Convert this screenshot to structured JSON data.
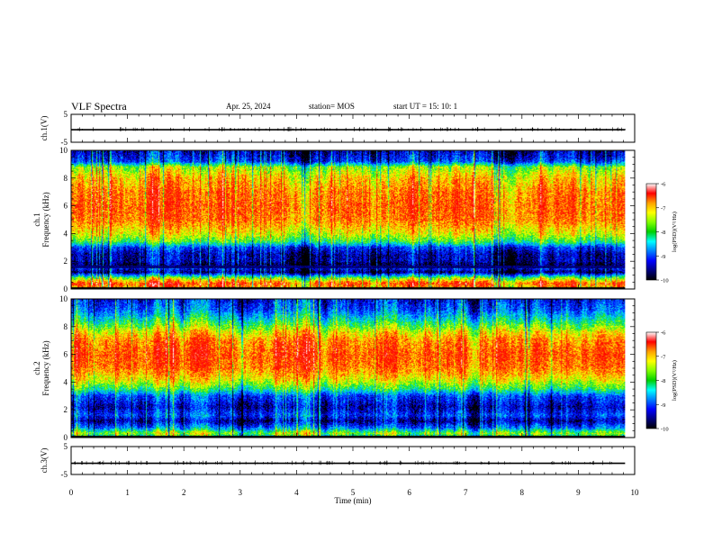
{
  "header": {
    "title": "VLF Spectra",
    "date": "Apr. 25, 2024",
    "station": "station= MOS",
    "start": "start  UT =   15: 10: 1"
  },
  "colorbar": {
    "label": "log(PSD)(V²/Hz)",
    "ticks": [
      "-6",
      "-7",
      "-8",
      "-9",
      "-10"
    ],
    "colors": [
      "#ffffff",
      "#ff0000",
      "#ffa000",
      "#ffff00",
      "#80ff00",
      "#00d000",
      "#00ffff",
      "#0080ff",
      "#0000ff",
      "#000080",
      "#000000"
    ]
  },
  "chart_data": [
    {
      "type": "line",
      "ylabel": "ch.1(V)",
      "ylim": [
        -5,
        5
      ],
      "yticks": [
        "5",
        "-5"
      ],
      "x": [
        0,
        9.83
      ],
      "y": [
        -0.5,
        -0.5
      ],
      "xlim": [
        0,
        10
      ]
    },
    {
      "type": "heatmap",
      "panel_label": "ch.1",
      "ylabel": "Frequency (kHz)",
      "ylim": [
        0,
        10
      ],
      "yticks": [
        "0",
        "2",
        "4",
        "6",
        "8",
        "10"
      ],
      "xlim": [
        0,
        10
      ],
      "x_data_end": 9.83,
      "z_label": "log(PSD)(V²/Hz)",
      "z_range": [
        -10,
        -6
      ],
      "profile_kHz_vs_logpsd": [
        [
          0,
          -7.4
        ],
        [
          0.4,
          -6.9
        ],
        [
          0.8,
          -8.0
        ],
        [
          1.2,
          -9.8
        ],
        [
          1.5,
          -9.3
        ],
        [
          1.75,
          -9.9
        ],
        [
          2.0,
          -9.6
        ],
        [
          2.5,
          -9.6
        ],
        [
          3.0,
          -9.2
        ],
        [
          3.4,
          -8.2
        ],
        [
          4.0,
          -7.6
        ],
        [
          5.0,
          -7.1
        ],
        [
          6.0,
          -7.0
        ],
        [
          7.0,
          -7.1
        ],
        [
          8.0,
          -7.4
        ],
        [
          8.8,
          -7.9
        ],
        [
          9.2,
          -9.2
        ],
        [
          10,
          -9.6
        ]
      ]
    },
    {
      "type": "heatmap",
      "panel_label": "ch.2",
      "ylabel": "Frequency (kHz)",
      "ylim": [
        0,
        10
      ],
      "yticks": [
        "0",
        "2",
        "4",
        "6",
        "8",
        "10"
      ],
      "xlim": [
        0,
        10
      ],
      "x_data_end": 9.83,
      "z_label": "log(PSD)(V²/Hz)",
      "z_range": [
        -10,
        -6
      ],
      "profile_kHz_vs_logpsd": [
        [
          0,
          -8.6
        ],
        [
          0.3,
          -7.8
        ],
        [
          0.7,
          -8.9
        ],
        [
          1.2,
          -9.6
        ],
        [
          1.6,
          -9.1
        ],
        [
          2.2,
          -9.5
        ],
        [
          3.0,
          -9.1
        ],
        [
          3.5,
          -8.2
        ],
        [
          4.2,
          -7.5
        ],
        [
          5.0,
          -7.05
        ],
        [
          6.0,
          -6.9
        ],
        [
          7.0,
          -7.1
        ],
        [
          7.6,
          -7.5
        ],
        [
          8.5,
          -8.4
        ],
        [
          9.2,
          -9.0
        ],
        [
          10,
          -9.3
        ]
      ]
    },
    {
      "type": "line",
      "ylabel": "ch.3(V)",
      "ylim": [
        -5,
        5
      ],
      "yticks": [
        "5",
        "-5"
      ],
      "x": [
        0,
        9.83
      ],
      "y": [
        -1.0,
        -1.0
      ],
      "xlim": [
        0,
        10
      ],
      "xlabel": "Time (min)",
      "xticks": [
        "0",
        "1",
        "2",
        "3",
        "4",
        "5",
        "6",
        "7",
        "8",
        "9",
        "10"
      ]
    }
  ]
}
